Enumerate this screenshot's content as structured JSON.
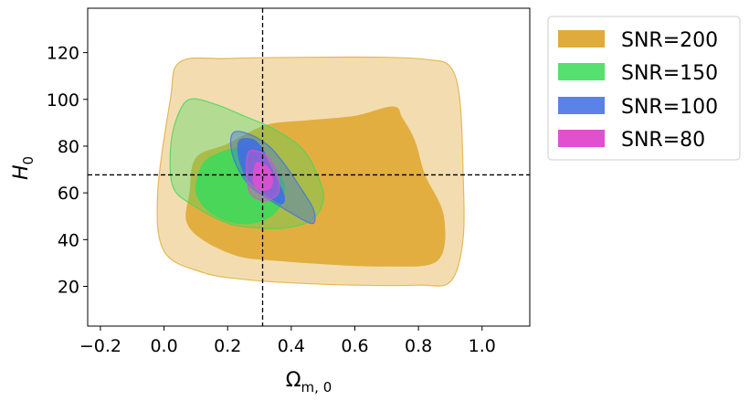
{
  "chart_data": {
    "type": "contour",
    "xlabel_main": "Ω",
    "xlabel_sub": "m, 0",
    "ylabel_main": "H",
    "ylabel_sub": "0",
    "xlim": [
      -0.24,
      1.15
    ],
    "ylim": [
      3,
      139
    ],
    "x_ticks": [
      -0.2,
      0.0,
      0.2,
      0.4,
      0.6,
      0.8,
      1.0
    ],
    "x_tick_labels": [
      "−0.2",
      "0.0",
      "0.2",
      "0.4",
      "0.6",
      "0.8",
      "1.0"
    ],
    "y_ticks": [
      20,
      40,
      60,
      80,
      100,
      120
    ],
    "y_tick_labels": [
      "20",
      "40",
      "60",
      "80",
      "100",
      "120"
    ],
    "reference_lines": {
      "x": 0.31,
      "y": 67.7,
      "style": "dashed"
    },
    "series": [
      {
        "name": "SNR=200",
        "legend_label": "SNR=200",
        "color": "#e0ab3a",
        "outer_alpha": 0.4,
        "inner_alpha": 0.95,
        "outer": [
          [
            0.05,
            116
          ],
          [
            0.2,
            117.5
          ],
          [
            0.45,
            118
          ],
          [
            0.7,
            118
          ],
          [
            0.83,
            117
          ],
          [
            0.9,
            114
          ],
          [
            0.93,
            100
          ],
          [
            0.94,
            70
          ],
          [
            0.94,
            40
          ],
          [
            0.9,
            22
          ],
          [
            0.8,
            20.5
          ],
          [
            0.6,
            20.5
          ],
          [
            0.4,
            21.5
          ],
          [
            0.25,
            23
          ],
          [
            0.12,
            26
          ],
          [
            0.0,
            35
          ],
          [
            -0.02,
            60
          ],
          [
            0.02,
            100
          ]
        ],
        "inner": [
          [
            0.32,
            89
          ],
          [
            0.45,
            91
          ],
          [
            0.6,
            93
          ],
          [
            0.72,
            97
          ],
          [
            0.75,
            92
          ],
          [
            0.79,
            82
          ],
          [
            0.82,
            68
          ],
          [
            0.88,
            50
          ],
          [
            0.86,
            31
          ],
          [
            0.7,
            28.5
          ],
          [
            0.5,
            29.5
          ],
          [
            0.35,
            31
          ],
          [
            0.23,
            33
          ],
          [
            0.12,
            40
          ],
          [
            0.07,
            48
          ],
          [
            0.08,
            60
          ],
          [
            0.1,
            75
          ],
          [
            0.2,
            81
          ]
        ]
      },
      {
        "name": "SNR=150",
        "legend_label": "SNR=150",
        "color": "#3ed85b",
        "outer_alpha": 0.35,
        "inner_alpha": 0.9,
        "outer": [
          [
            0.08,
            100
          ],
          [
            0.16,
            98
          ],
          [
            0.25,
            93
          ],
          [
            0.35,
            87
          ],
          [
            0.44,
            78
          ],
          [
            0.49,
            65
          ],
          [
            0.5,
            56
          ],
          [
            0.46,
            48
          ],
          [
            0.38,
            45
          ],
          [
            0.3,
            45
          ],
          [
            0.2,
            47
          ],
          [
            0.1,
            54
          ],
          [
            0.03,
            62
          ],
          [
            0.02,
            78
          ],
          [
            0.04,
            92
          ]
        ],
        "inner": [
          [
            0.14,
            75
          ],
          [
            0.22,
            79
          ],
          [
            0.29,
            77
          ],
          [
            0.35,
            71
          ],
          [
            0.38,
            62
          ],
          [
            0.36,
            53
          ],
          [
            0.3,
            47.5
          ],
          [
            0.22,
            47
          ],
          [
            0.14,
            52
          ],
          [
            0.1,
            60
          ],
          [
            0.11,
            69
          ]
        ]
      },
      {
        "name": "SNR=100",
        "legend_label": "SNR=100",
        "color": "#3f6fe0",
        "outer_alpha": 0.4,
        "inner_alpha": 0.9,
        "outer": [
          [
            0.22,
            86
          ],
          [
            0.27,
            85
          ],
          [
            0.33,
            80
          ],
          [
            0.38,
            72
          ],
          [
            0.43,
            62
          ],
          [
            0.47,
            53
          ],
          [
            0.47,
            47
          ],
          [
            0.43,
            49
          ],
          [
            0.38,
            53
          ],
          [
            0.32,
            58
          ],
          [
            0.27,
            63
          ],
          [
            0.23,
            71
          ],
          [
            0.21,
            80
          ]
        ],
        "inner": [
          [
            0.24,
            83
          ],
          [
            0.28,
            83
          ],
          [
            0.31,
            79
          ],
          [
            0.33,
            73
          ],
          [
            0.36,
            65
          ],
          [
            0.38,
            58
          ],
          [
            0.37,
            55
          ],
          [
            0.34,
            57
          ],
          [
            0.3,
            61
          ],
          [
            0.26,
            66
          ],
          [
            0.24,
            72
          ],
          [
            0.23,
            79
          ]
        ]
      },
      {
        "name": "SNR=80",
        "legend_label": "SNR=80",
        "color": "#e050cf",
        "outer_alpha": 0.45,
        "inner_alpha": 0.9,
        "outer": [
          [
            0.27,
            78
          ],
          [
            0.31,
            77
          ],
          [
            0.34,
            73
          ],
          [
            0.36,
            66
          ],
          [
            0.36,
            60
          ],
          [
            0.33,
            57
          ],
          [
            0.3,
            57
          ],
          [
            0.27,
            60
          ],
          [
            0.26,
            67
          ],
          [
            0.26,
            74
          ]
        ],
        "inner": [
          [
            0.29,
            73
          ],
          [
            0.32,
            72
          ],
          [
            0.34,
            68
          ],
          [
            0.34,
            63
          ],
          [
            0.32,
            61
          ],
          [
            0.3,
            61
          ],
          [
            0.28,
            64
          ],
          [
            0.28,
            69
          ]
        ]
      }
    ]
  }
}
